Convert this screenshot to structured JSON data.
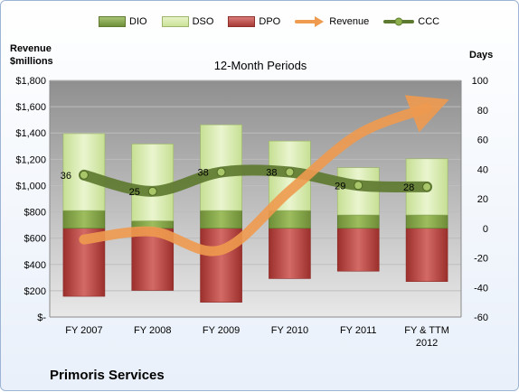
{
  "chart_data": {
    "type": "bar",
    "title": "12-Month Periods",
    "company": "Primoris Services",
    "left_axis_label": [
      "Revenue",
      "$millions"
    ],
    "right_axis_label": "Days",
    "categories": [
      [
        "FY 2007"
      ],
      [
        "FY 2008"
      ],
      [
        "FY 2009"
      ],
      [
        "FY 2010"
      ],
      [
        "FY 2011"
      ],
      [
        "FY & TTM",
        "2012"
      ]
    ],
    "left_ylim": [
      0,
      1800
    ],
    "left_ticks": [
      "$-",
      "$200",
      "$400",
      "$600",
      "$800",
      "$1,000",
      "$1,200",
      "$1,400",
      "$1,600",
      "$1,800"
    ],
    "right_ylim": [
      -60,
      100
    ],
    "right_ticks": [
      "-60",
      "-40",
      "-20",
      "0",
      "20",
      "40",
      "60",
      "80",
      "100"
    ],
    "grid": true,
    "legend_position": "top",
    "series": [
      {
        "name": "DIO",
        "kind": "bar",
        "axis": "right",
        "color": "#7a9a3f",
        "values": [
          12,
          5,
          12,
          12,
          9,
          9
        ]
      },
      {
        "name": "DSO",
        "kind": "bar",
        "axis": "right",
        "color": "#d9eab0",
        "values": [
          52,
          52,
          58,
          47,
          32,
          38
        ]
      },
      {
        "name": "DPO",
        "kind": "bar",
        "axis": "right",
        "color": "#b7423f",
        "values": [
          -46,
          -42,
          -50,
          -34,
          -29,
          -36
        ]
      },
      {
        "name": "Revenue",
        "kind": "line",
        "axis": "left",
        "color": "#ee9a4f",
        "values": [
          590,
          650,
          510,
          960,
          1390,
          1590
        ]
      },
      {
        "name": "CCC",
        "kind": "line",
        "axis": "right",
        "color": "#5e7a30",
        "values": [
          36,
          25,
          38,
          38,
          29,
          28
        ]
      }
    ],
    "ccc_labels": [
      "36",
      "25",
      "38",
      "38",
      "29",
      "28"
    ]
  }
}
